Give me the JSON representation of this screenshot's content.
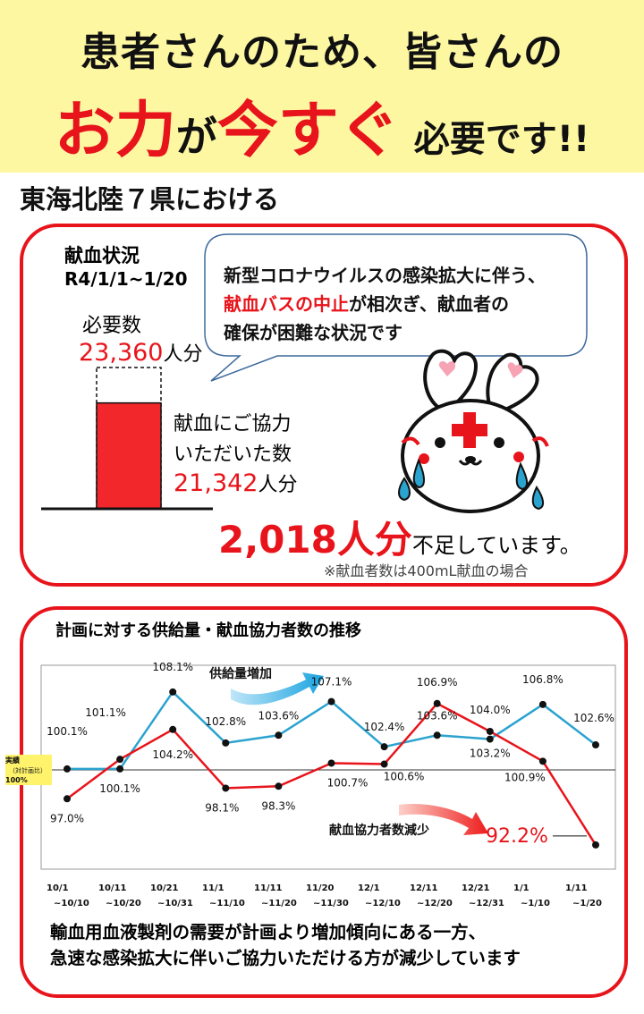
{
  "banner": {
    "line1": "患者さんのため、皆さんの",
    "w1": "お力",
    "w2": "が",
    "w3": "今すぐ",
    "w4": "必要です!!"
  },
  "region": "東海北陸７県における",
  "status": {
    "title": "献血状況",
    "period": "R4/1/1~1/20",
    "required_label": "必要数",
    "required_value": "23,360",
    "unit": "人分",
    "donated_label1": "献血にご協力",
    "donated_label2": "いただいた数",
    "donated_value": "21,342",
    "shortage_value": "2,018人分",
    "shortage_text": "不足しています。",
    "note": "※献血者数は400mL献血の場合",
    "required_num": 23360,
    "donated_num": 21342
  },
  "bubble": {
    "line1": "新型コロナウイルスの感染拡大に伴う、",
    "line2_red": "献血バスの中止",
    "line2_rest": "が相次ぎ、献血者の",
    "line3": "確保が困難な状況です"
  },
  "chart_data": {
    "type": "line",
    "title": "計画に対する供給量・献血協力者数の推移",
    "categories": [
      [
        "10/1",
        "~10/10"
      ],
      [
        "10/11",
        "~10/20"
      ],
      [
        "10/21",
        "~10/31"
      ],
      [
        "11/1",
        "~11/10"
      ],
      [
        "11/11",
        "~11/20"
      ],
      [
        "11/20",
        "~11/30"
      ],
      [
        "12/1",
        "~12/10"
      ],
      [
        "12/11",
        "~12/20"
      ],
      [
        "12/21",
        "~12/31"
      ],
      [
        "1/1",
        "~1/10"
      ],
      [
        "1/11",
        "~1/20"
      ]
    ],
    "series": [
      {
        "name": "供給量",
        "color": "#2ba3cf",
        "values": [
          100.1,
          100.1,
          108.1,
          102.8,
          103.6,
          107.1,
          102.4,
          103.6,
          103.2,
          106.8,
          102.6
        ],
        "labels": [
          "100.1%",
          "100.1%",
          "108.1%",
          "102.8%",
          "103.6%",
          "107.1%",
          "102.4%",
          "103.6%",
          "103.2%",
          "106.8%",
          "102.6%"
        ]
      },
      {
        "name": "献血協力者数",
        "color": "#e8141b",
        "values": [
          97.0,
          101.1,
          104.2,
          98.1,
          98.3,
          100.7,
          100.6,
          106.9,
          104.0,
          100.9,
          92.2
        ],
        "labels": [
          "97.0%",
          "101.1%",
          "104.2%",
          "98.1%",
          "98.3%",
          "100.7%",
          "100.6%",
          "106.9%",
          "104.0%",
          "100.9%",
          "92.2%"
        ]
      }
    ],
    "baseline": 100,
    "baseline_label": [
      "実績",
      "（対計画比）",
      "100%"
    ],
    "arrow_up_label": "供給量増加",
    "arrow_down_label": "献血協力者数減少",
    "ylim": [
      90,
      110
    ]
  },
  "footer": {
    "line1": "輸血用血液製剤の需要が計画より増加傾向にある一方、",
    "line2": "急速な感染拡大に伴いご協力いただける方が減少しています"
  },
  "colors": {
    "accent_red": "#e8141b",
    "banner_yellow": "#fdf7a2",
    "series_blue": "#2ba3cf"
  }
}
